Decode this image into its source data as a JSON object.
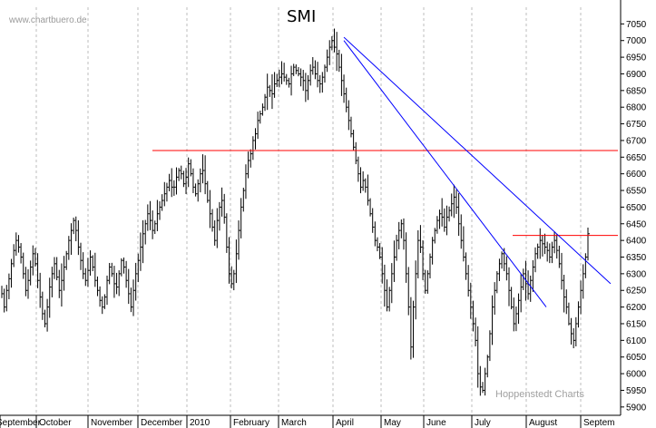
{
  "watermark": "www.chartbuero.de",
  "credit": "Hoppenstedt Charts",
  "chart_data": {
    "type": "ohlc",
    "title": "SMI",
    "xlabel": "",
    "ylabel": "",
    "ylim": [
      5875,
      7100
    ],
    "y_ticks": [
      5900,
      5950,
      6000,
      6050,
      6100,
      6150,
      6200,
      6250,
      6300,
      6350,
      6400,
      6450,
      6500,
      6550,
      6600,
      6650,
      6700,
      6750,
      6800,
      6850,
      6900,
      6950,
      7000,
      7050
    ],
    "y_axis_position": "right",
    "grid": "vertical dashed at month boundaries",
    "x_labels": [
      "September",
      "October",
      "November",
      "December",
      "2010",
      "February",
      "March",
      "April",
      "May",
      "June",
      "July",
      "August",
      "Septem"
    ],
    "bar_color": "#000000",
    "close_series": [
      6240,
      6200,
      6250,
      6285,
      6330,
      6370,
      6400,
      6380,
      6350,
      6300,
      6250,
      6280,
      6320,
      6360,
      6330,
      6280,
      6230,
      6180,
      6150,
      6200,
      6260,
      6300,
      6330,
      6290,
      6250,
      6280,
      6320,
      6360,
      6400,
      6430,
      6460,
      6430,
      6380,
      6340,
      6300,
      6280,
      6310,
      6350,
      6320,
      6280,
      6250,
      6220,
      6200,
      6230,
      6280,
      6320,
      6300,
      6270,
      6260,
      6300,
      6340,
      6320,
      6280,
      6240,
      6200,
      6250,
      6300,
      6340,
      6380,
      6420,
      6450,
      6480,
      6460,
      6430,
      6450,
      6480,
      6500,
      6520,
      6540,
      6560,
      6580,
      6560,
      6560,
      6590,
      6610,
      6600,
      6570,
      6590,
      6630,
      6600,
      6560,
      6540,
      6570,
      6600,
      6610,
      6570,
      6520,
      6480,
      6440,
      6400,
      6460,
      6500,
      6520,
      6470,
      6380,
      6300,
      6270,
      6300,
      6360,
      6430,
      6500,
      6550,
      6600,
      6640,
      6660,
      6700,
      6720,
      6760,
      6780,
      6800,
      6830,
      6860,
      6850,
      6840,
      6870,
      6880,
      6890,
      6900,
      6890,
      6880,
      6870,
      6900,
      6920,
      6910,
      6900,
      6890,
      6880,
      6850,
      6880,
      6910,
      6920,
      6900,
      6880,
      6870,
      6890,
      6920,
      6950,
      6980,
      7000,
      6980,
      6960,
      6920,
      6880,
      6840,
      6800,
      6760,
      6720,
      6680,
      6640,
      6600,
      6560,
      6580,
      6560,
      6520,
      6480,
      6440,
      6400,
      6380,
      6350,
      6300,
      6250,
      6200,
      6250,
      6300,
      6350,
      6400,
      6430,
      6450,
      6400,
      6300,
      6200,
      6080,
      6200,
      6300,
      6400,
      6380,
      6300,
      6250,
      6300,
      6350,
      6400,
      6430,
      6460,
      6480,
      6470,
      6440,
      6470,
      6490,
      6510,
      6530,
      6500,
      6450,
      6400,
      6350,
      6300,
      6250,
      6200,
      6150,
      6100,
      6000,
      5960,
      5950,
      6000,
      6050,
      6120,
      6200,
      6250,
      6300,
      6330,
      6360,
      6330,
      6300,
      6250,
      6200,
      6150,
      6180,
      6220,
      6260,
      6300,
      6270,
      6240,
      6280,
      6320,
      6360,
      6380,
      6400,
      6390,
      6380,
      6370,
      6350,
      6380,
      6400,
      6370,
      6330,
      6280,
      6230,
      6200,
      6150,
      6120,
      6100,
      6150,
      6200,
      6250,
      6300,
      6350,
      6420
    ],
    "horizontal_lines": [
      {
        "value": 6670,
        "x_start": "December",
        "x_end": "Septem",
        "color": "#ff0000"
      },
      {
        "value": 6415,
        "x_start": "August",
        "x_end": "Septem",
        "color": "#ff0000"
      }
    ],
    "trend_lines": [
      {
        "from": [
          "April",
          7010
        ],
        "to": [
          "Septem",
          6270
        ],
        "color": "#0000ff"
      },
      {
        "from": [
          "April",
          7000
        ],
        "to": [
          "August",
          6200
        ],
        "color": "#0000ff"
      }
    ]
  }
}
